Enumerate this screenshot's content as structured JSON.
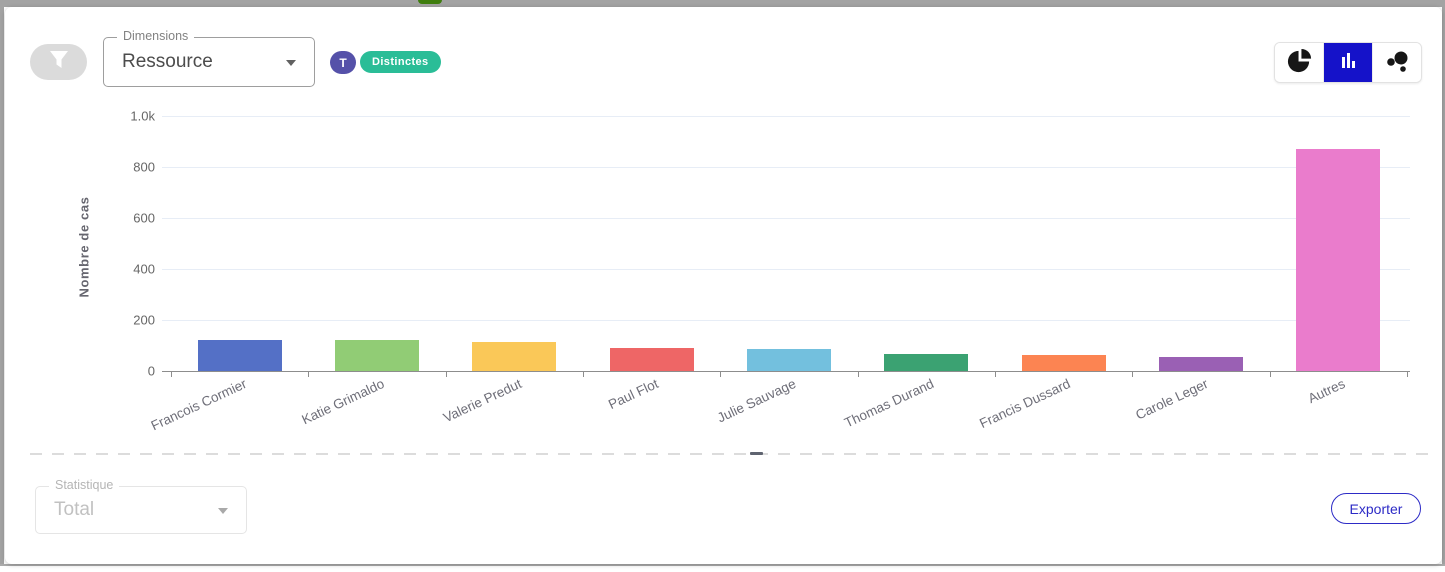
{
  "window": {
    "top_accent_color": "#3e7d0d"
  },
  "header": {
    "filter_button": {
      "icon": "funnel-icon"
    },
    "dimensions_select": {
      "label": "Dimensions",
      "value": "Ressource"
    },
    "badges": [
      {
        "text": "T",
        "color": "#5551a9"
      },
      {
        "text": "Distinctes",
        "color": "#2abd97"
      }
    ],
    "chart_type_toggle": {
      "options": [
        "pie",
        "bar",
        "bubble"
      ],
      "selected": "bar",
      "selected_color": "#1512c9"
    }
  },
  "chart_data": {
    "type": "bar",
    "title": "",
    "xlabel": "",
    "ylabel": "Nombre de cas",
    "categories": [
      "Francois Cormier",
      "Katie Grimaldo",
      "Valerie Predut",
      "Paul Flot",
      "Julie Sauvage",
      "Thomas Durand",
      "Francis Dussard",
      "Carole Leger",
      "Autres"
    ],
    "values": [
      122,
      120,
      115,
      91,
      87,
      66,
      62,
      56,
      870
    ],
    "colors": [
      "#5470c6",
      "#91cc75",
      "#fac858",
      "#ee6666",
      "#73c0de",
      "#3ba272",
      "#fc8452",
      "#9a60b4",
      "#ea7ccc"
    ],
    "ylim": [
      0,
      1000
    ],
    "yticks": [
      {
        "value": 0,
        "label": "0"
      },
      {
        "value": 200,
        "label": "200"
      },
      {
        "value": 400,
        "label": "400"
      },
      {
        "value": 600,
        "label": "600"
      },
      {
        "value": 800,
        "label": "800"
      },
      {
        "value": 1000,
        "label": "1.0k"
      }
    ],
    "grid": true,
    "legend": "none",
    "xlabel_rotation": -25
  },
  "footer": {
    "statistique_select": {
      "label": "Statistique",
      "value": "Total",
      "disabled": true
    },
    "export_button": {
      "label": "Exporter"
    }
  }
}
